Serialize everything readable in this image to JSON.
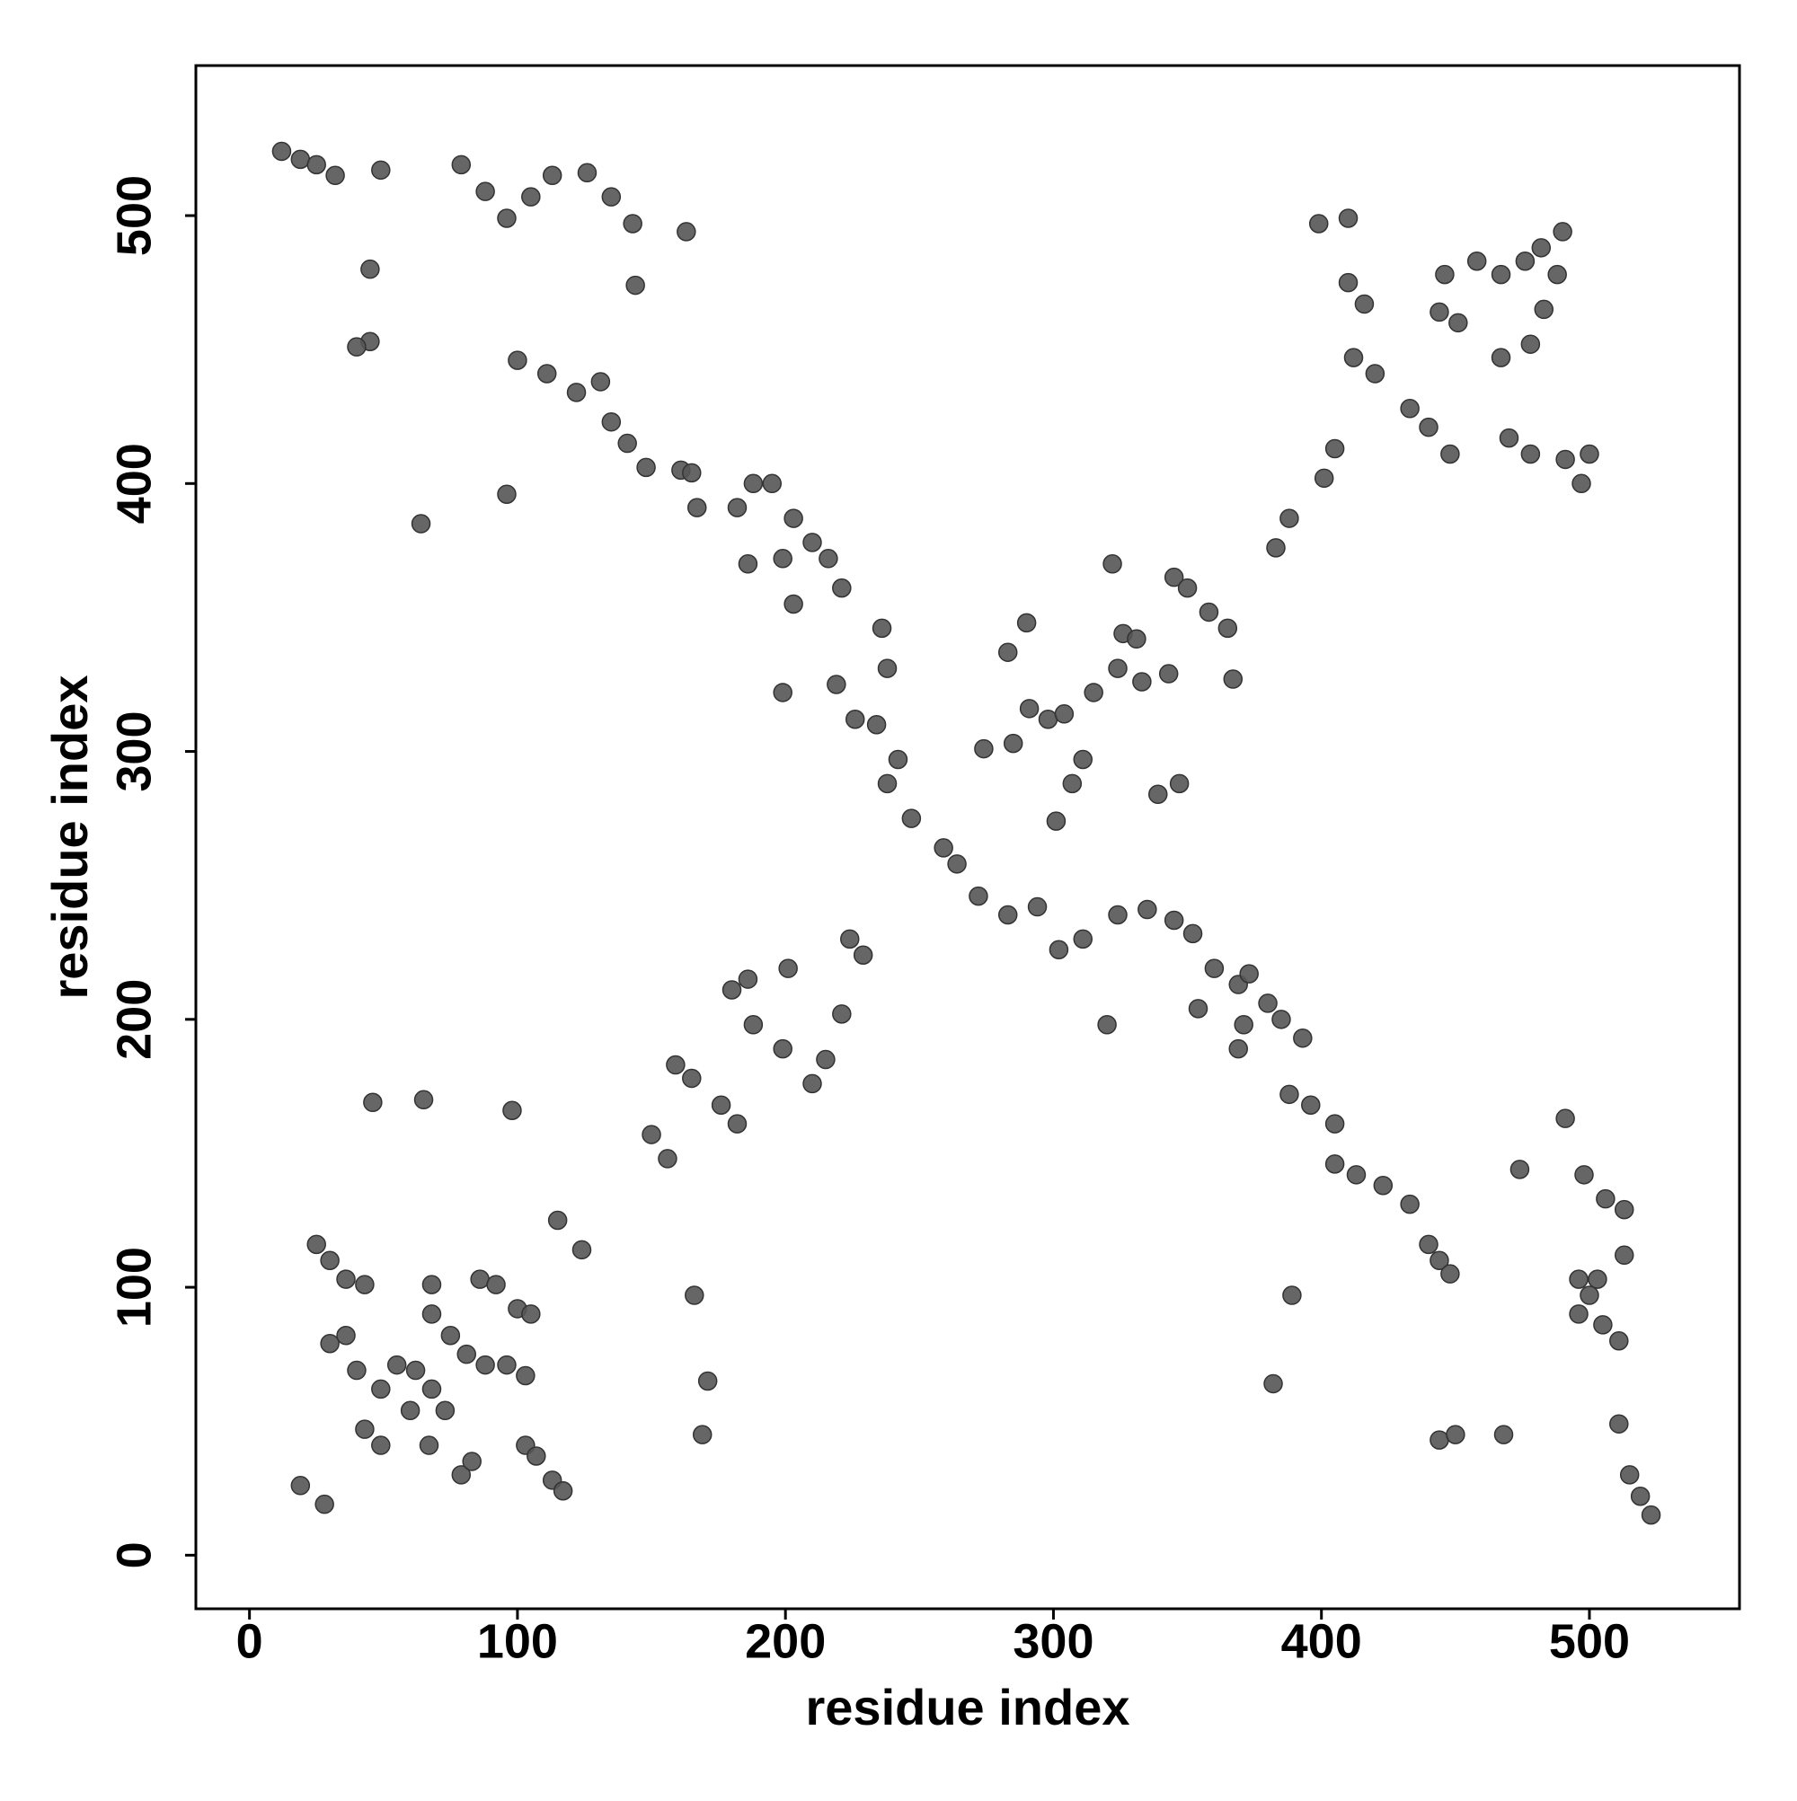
{
  "chart_data": {
    "type": "scatter",
    "x_label": "residue index",
    "y_label": "residue index",
    "xlim": [
      -20,
      556
    ],
    "ylim": [
      -20,
      556
    ],
    "xticks": [
      0,
      100,
      200,
      300,
      400,
      500
    ],
    "yticks": [
      0,
      100,
      200,
      300,
      400,
      500
    ],
    "color": "#555555",
    "x": [
      12,
      19,
      25,
      32,
      49,
      45,
      45,
      40,
      79,
      88,
      96,
      105,
      113,
      126,
      135,
      143,
      144,
      163,
      96,
      64,
      100,
      111,
      122,
      131,
      135,
      141,
      148,
      161,
      167,
      165,
      182,
      188,
      195,
      203,
      199,
      186,
      210,
      216,
      221,
      236,
      238,
      219,
      226,
      234,
      242,
      238,
      247,
      259,
      264,
      203,
      199,
      272,
      283,
      294,
      302,
      311,
      324,
      335,
      320,
      345,
      352,
      360,
      369,
      373,
      380,
      371,
      385,
      393,
      388,
      396,
      405,
      405,
      413,
      423,
      433,
      440,
      444,
      448,
      354,
      369,
      389,
      382,
      274,
      285,
      291,
      298,
      304,
      311,
      307,
      301,
      315,
      324,
      326,
      331,
      333,
      322,
      345,
      350,
      358,
      365,
      367,
      343,
      339,
      347,
      283,
      290,
      388,
      383,
      399,
      410,
      410,
      416,
      412,
      420,
      433,
      440,
      448,
      446,
      458,
      467,
      476,
      482,
      488,
      483,
      478,
      467,
      451,
      444,
      470,
      478,
      491,
      500,
      497,
      405,
      401,
      490,
      491,
      498,
      506,
      513,
      496,
      503,
      496,
      505,
      511,
      500,
      513,
      474,
      511,
      515,
      519,
      523,
      444,
      450,
      468,
      159,
      165,
      176,
      182,
      150,
      156,
      180,
      186,
      201,
      188,
      199,
      221,
      215,
      210,
      224,
      229,
      25,
      30,
      36,
      43,
      30,
      36,
      40,
      49,
      55,
      62,
      68,
      60,
      67,
      73,
      68,
      68,
      75,
      81,
      88,
      86,
      92,
      100,
      105,
      103,
      96,
      49,
      43,
      79,
      83,
      103,
      107,
      113,
      117,
      19,
      28,
      115,
      124,
      46,
      65,
      98,
      166,
      171,
      169
    ],
    "y": [
      524,
      521,
      519,
      515,
      517,
      480,
      453,
      451,
      519,
      509,
      499,
      507,
      515,
      516,
      507,
      497,
      474,
      494,
      396,
      385,
      446,
      441,
      434,
      438,
      423,
      415,
      406,
      405,
      391,
      404,
      391,
      400,
      400,
      387,
      372,
      370,
      378,
      372,
      361,
      346,
      331,
      325,
      312,
      310,
      297,
      288,
      275,
      264,
      258,
      355,
      322,
      246,
      239,
      242,
      226,
      230,
      239,
      241,
      198,
      237,
      232,
      219,
      213,
      217,
      206,
      198,
      200,
      193,
      172,
      168,
      161,
      146,
      142,
      138,
      131,
      116,
      110,
      105,
      204,
      189,
      97,
      64,
      301,
      303,
      316,
      312,
      314,
      297,
      288,
      274,
      322,
      331,
      344,
      342,
      326,
      370,
      365,
      361,
      352,
      346,
      327,
      329,
      284,
      288,
      337,
      348,
      387,
      376,
      497,
      499,
      475,
      467,
      447,
      441,
      428,
      421,
      411,
      478,
      483,
      478,
      483,
      488,
      478,
      465,
      452,
      447,
      460,
      464,
      417,
      411,
      409,
      411,
      400,
      413,
      402,
      494,
      163,
      142,
      133,
      129,
      103,
      103,
      90,
      86,
      80,
      97,
      112,
      144,
      49,
      30,
      22,
      15,
      43,
      45,
      45,
      183,
      178,
      168,
      161,
      157,
      148,
      211,
      215,
      219,
      198,
      189,
      202,
      185,
      176,
      230,
      224,
      116,
      110,
      103,
      101,
      79,
      82,
      69,
      62,
      71,
      69,
      62,
      54,
      41,
      54,
      101,
      90,
      82,
      75,
      71,
      103,
      101,
      92,
      90,
      67,
      71,
      41,
      47,
      30,
      35,
      41,
      37,
      28,
      24,
      26,
      19,
      125,
      114,
      169,
      170,
      166,
      97,
      65,
      45
    ]
  }
}
